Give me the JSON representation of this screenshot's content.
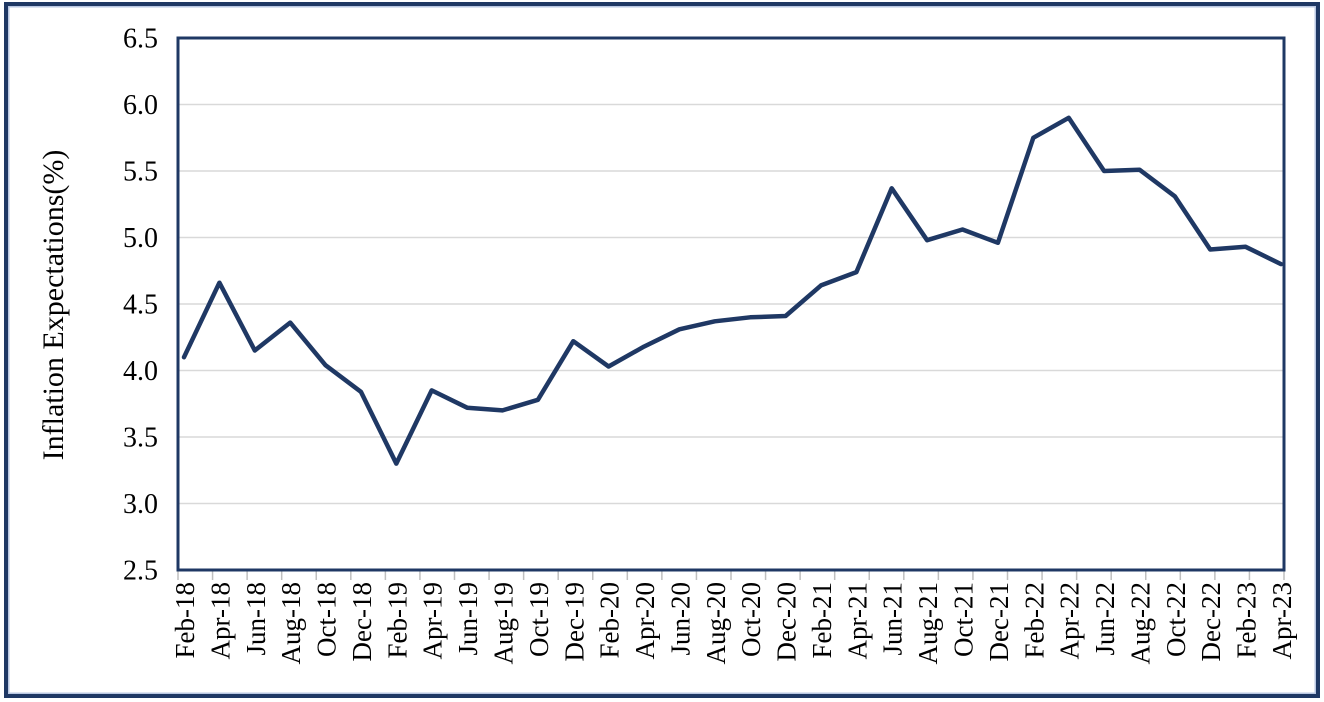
{
  "figure": {
    "border_color": "#1f3864",
    "inner_edge_color": "#b9c7e2",
    "background": "#ffffff"
  },
  "chart_data": {
    "type": "line",
    "title": "",
    "xlabel": "",
    "ylabel": "Inflation Expectations(%)",
    "ylim": [
      2.5,
      6.5
    ],
    "ytick_labels": [
      "6.5",
      "6.0",
      "5.5",
      "5.0",
      "4.5",
      "4.0",
      "3.5",
      "3.0",
      "2.5"
    ],
    "grid": "horizontal",
    "legend_position": "none",
    "categories": [
      "Feb-18",
      "Apr-18",
      "Jun-18",
      "Aug-18",
      "Oct-18",
      "Dec-18",
      "Feb-19",
      "Apr-19",
      "Jun-19",
      "Aug-19",
      "Oct-19",
      "Dec-19",
      "Feb-20",
      "Apr-20",
      "Jun-20",
      "Aug-20",
      "Oct-20",
      "Dec-20",
      "Feb-21",
      "Apr-21",
      "Jun-21",
      "Aug-21",
      "Oct-21",
      "Dec-21",
      "Feb-22",
      "Apr-22",
      "Jun-22",
      "Aug-22",
      "Oct-22",
      "Dec-22",
      "Feb-23",
      "Apr-23"
    ],
    "series": [
      {
        "name": "Inflation Expectations (%)",
        "color": "#1f3864",
        "values": [
          4.1,
          4.66,
          4.15,
          4.36,
          4.04,
          3.84,
          3.3,
          3.85,
          3.72,
          3.7,
          3.78,
          4.22,
          4.03,
          4.18,
          4.31,
          4.37,
          4.4,
          4.41,
          4.64,
          4.74,
          5.37,
          4.98,
          5.06,
          4.96,
          5.75,
          5.9,
          5.5,
          5.51,
          5.31,
          4.91,
          4.93,
          4.8
        ]
      }
    ],
    "gridline_color": "#d9d9d9",
    "tick_color": "#bfbfbf",
    "frame_color": "#1f3864",
    "text_color": "#000000"
  }
}
